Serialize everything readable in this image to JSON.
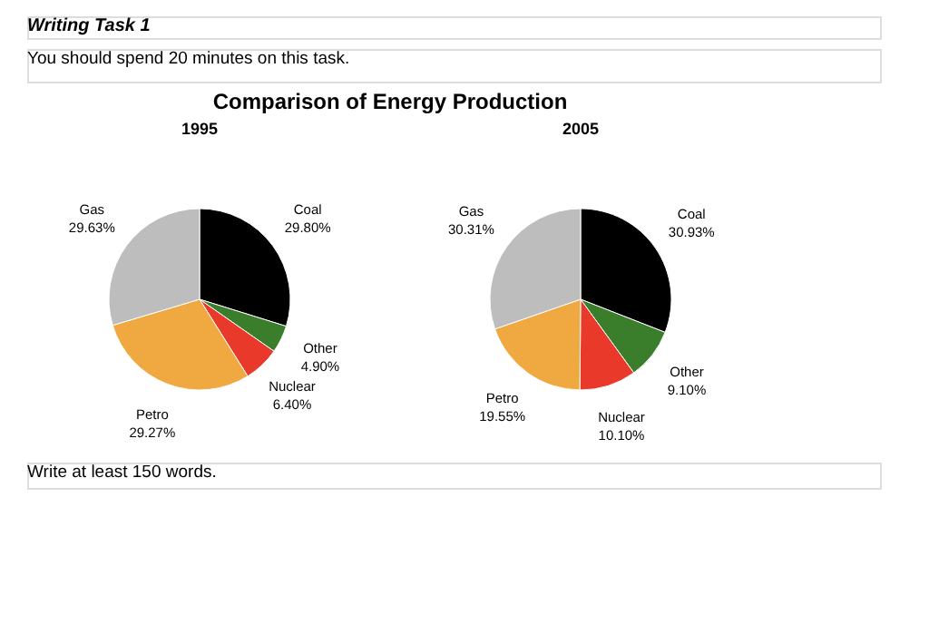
{
  "chart_data": [
    {
      "type": "pie",
      "title": "Comparison of Energy Production",
      "subtitle": "1995",
      "categories": [
        "Coal",
        "Other",
        "Nuclear",
        "Petro",
        "Gas"
      ],
      "values": [
        29.8,
        4.9,
        6.4,
        29.27,
        29.63
      ],
      "value_labels": [
        "29.80%",
        "4.90%",
        "6.40%",
        "29.27%",
        "29.63%"
      ],
      "colors": [
        "#000000",
        "#3a7d2a",
        "#e8392b",
        "#f0a840",
        "#bdbdbd"
      ],
      "annotations": [
        "Writing Task 1",
        "You should spend 20 minutes on this task.",
        "Write at least 150 words."
      ]
    },
    {
      "type": "pie",
      "subtitle": "2005",
      "categories": [
        "Coal",
        "Other",
        "Nuclear",
        "Petro",
        "Gas"
      ],
      "values": [
        30.93,
        9.1,
        10.1,
        19.55,
        30.31
      ],
      "value_labels": [
        "30.93%",
        "9.10%",
        "10.10%",
        "19.55%",
        "30.31%"
      ],
      "colors": [
        "#000000",
        "#3a7d2a",
        "#e8392b",
        "#f0a840",
        "#bdbdbd"
      ]
    }
  ]
}
